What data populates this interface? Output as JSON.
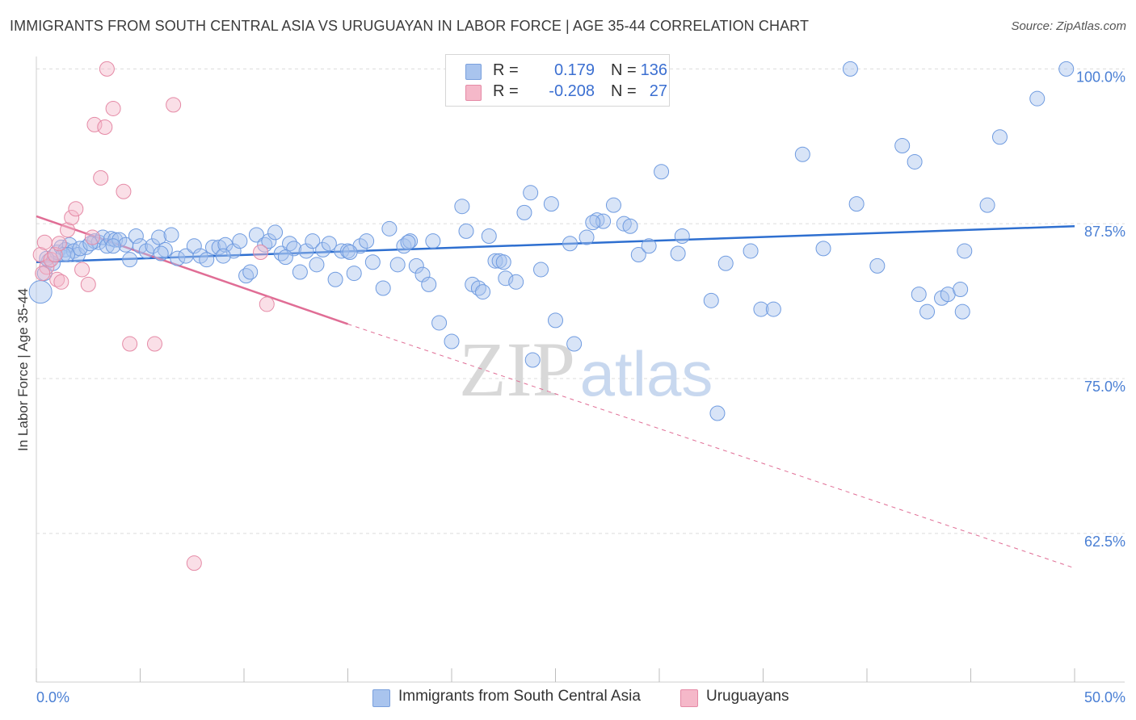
{
  "title": "IMMIGRANTS FROM SOUTH CENTRAL ASIA VS URUGUAYAN IN LABOR FORCE | AGE 35-44 CORRELATION CHART",
  "source": "Source: ZipAtlas.com",
  "watermark": {
    "zip": "ZIP",
    "atlas": "atlas"
  },
  "colors": {
    "blue": "#4a7fd4",
    "blue_fill": "#a9c4ee",
    "blue_line": "#2e6fd0",
    "pink_fill": "#f5b8c9",
    "pink_line": "#e06d95",
    "grid": "#dcdcdc",
    "tick_text": "#4a7fd4"
  },
  "legend": {
    "rows": [
      {
        "r_label": "R =",
        "r_value": "0.179",
        "n_label": "N =",
        "n_value": "136",
        "color": "#a9c4ee"
      },
      {
        "r_label": "R =",
        "r_value": "-0.208",
        "n_label": "N =",
        "n_value": "27",
        "color": "#f5b8c9"
      }
    ]
  },
  "bottom_legend": [
    {
      "label": "Immigrants from South Central Asia",
      "color": "#a9c4ee"
    },
    {
      "label": "Uruguayans",
      "color": "#f5b8c9"
    }
  ],
  "chart_data": {
    "type": "scatter",
    "title": "IMMIGRANTS FROM SOUTH CENTRAL ASIA VS URUGUAYAN IN LABOR FORCE | AGE 35-44 CORRELATION CHART",
    "xlabel": "",
    "ylabel": "In Labor Force | Age 35-44",
    "xlim": [
      0,
      50
    ],
    "ylim": [
      50.5,
      101
    ],
    "x_tick_labels": [
      "0.0%",
      "50.0%"
    ],
    "y_ticks": [
      62.5,
      75.0,
      87.5,
      100.0
    ],
    "y_tick_labels": [
      "62.5%",
      "75.0%",
      "87.5%",
      "100.0%"
    ],
    "grid": true,
    "legend_position": "top-center",
    "series": [
      {
        "name": "Immigrants from South Central Asia",
        "color": "#a9c4ee",
        "trend": {
          "x": [
            0,
            50
          ],
          "y": [
            84.4,
            87.3
          ],
          "style": "solid"
        },
        "points": [
          [
            0.2,
            82.0
          ],
          [
            0.4,
            83.5
          ],
          [
            0.6,
            84.5
          ],
          [
            0.8,
            84.3
          ],
          [
            1.0,
            85.2
          ],
          [
            1.2,
            85.6
          ],
          [
            1.4,
            85.4
          ],
          [
            1.6,
            85.8
          ],
          [
            1.8,
            85.3
          ],
          [
            2.0,
            85.0
          ],
          [
            2.4,
            85.6
          ],
          [
            2.8,
            86.1
          ],
          [
            3.0,
            86.0
          ],
          [
            3.2,
            86.4
          ],
          [
            3.4,
            85.7
          ],
          [
            3.6,
            86.3
          ],
          [
            3.8,
            86.2
          ],
          [
            4.0,
            86.2
          ],
          [
            4.3,
            85.8
          ],
          [
            4.5,
            84.6
          ],
          [
            4.8,
            86.5
          ],
          [
            5.0,
            85.7
          ],
          [
            5.3,
            85.3
          ],
          [
            5.6,
            85.7
          ],
          [
            5.9,
            86.4
          ],
          [
            6.2,
            85.4
          ],
          [
            6.5,
            86.6
          ],
          [
            6.8,
            84.7
          ],
          [
            7.2,
            84.9
          ],
          [
            7.6,
            85.7
          ],
          [
            7.9,
            84.9
          ],
          [
            8.2,
            84.6
          ],
          [
            8.5,
            85.6
          ],
          [
            8.8,
            85.6
          ],
          [
            9.1,
            85.8
          ],
          [
            9.5,
            85.3
          ],
          [
            9.8,
            86.1
          ],
          [
            10.1,
            83.3
          ],
          [
            10.3,
            83.6
          ],
          [
            10.6,
            86.6
          ],
          [
            11.0,
            85.8
          ],
          [
            11.2,
            86.1
          ],
          [
            11.5,
            86.8
          ],
          [
            11.8,
            85.1
          ],
          [
            12.2,
            85.9
          ],
          [
            12.4,
            85.5
          ],
          [
            12.7,
            83.6
          ],
          [
            13.0,
            85.3
          ],
          [
            13.3,
            86.1
          ],
          [
            13.5,
            84.2
          ],
          [
            13.8,
            85.4
          ],
          [
            14.1,
            85.9
          ],
          [
            14.4,
            83.0
          ],
          [
            14.7,
            85.3
          ],
          [
            15.0,
            85.3
          ],
          [
            15.3,
            83.5
          ],
          [
            15.6,
            85.7
          ],
          [
            15.9,
            86.1
          ],
          [
            16.2,
            84.4
          ],
          [
            16.7,
            82.3
          ],
          [
            17.0,
            87.1
          ],
          [
            17.4,
            84.2
          ],
          [
            17.7,
            85.7
          ],
          [
            18.0,
            86.1
          ],
          [
            18.3,
            84.1
          ],
          [
            18.6,
            83.4
          ],
          [
            18.9,
            82.6
          ],
          [
            19.1,
            86.1
          ],
          [
            19.4,
            79.5
          ],
          [
            20.0,
            78.0
          ],
          [
            20.5,
            88.9
          ],
          [
            20.7,
            86.9
          ],
          [
            21.0,
            82.6
          ],
          [
            21.3,
            82.3
          ],
          [
            21.5,
            82.0
          ],
          [
            21.8,
            86.5
          ],
          [
            22.1,
            84.5
          ],
          [
            22.3,
            84.5
          ],
          [
            22.6,
            83.1
          ],
          [
            23.1,
            82.8
          ],
          [
            23.5,
            88.4
          ],
          [
            23.8,
            90.0
          ],
          [
            23.9,
            76.5
          ],
          [
            24.3,
            83.8
          ],
          [
            24.8,
            89.1
          ],
          [
            25.0,
            79.7
          ],
          [
            25.7,
            85.9
          ],
          [
            25.9,
            77.8
          ],
          [
            26.5,
            86.4
          ],
          [
            27.0,
            87.8
          ],
          [
            27.3,
            87.7
          ],
          [
            27.8,
            89.0
          ],
          [
            28.3,
            87.5
          ],
          [
            28.6,
            87.3
          ],
          [
            29.0,
            85.0
          ],
          [
            29.5,
            85.7
          ],
          [
            30.1,
            91.7
          ],
          [
            30.9,
            85.1
          ],
          [
            31.1,
            86.5
          ],
          [
            32.5,
            81.3
          ],
          [
            32.8,
            72.2
          ],
          [
            33.2,
            84.3
          ],
          [
            34.4,
            85.3
          ],
          [
            34.9,
            80.6
          ],
          [
            35.5,
            80.6
          ],
          [
            36.9,
            93.1
          ],
          [
            37.9,
            85.5
          ],
          [
            39.2,
            100.0
          ],
          [
            39.5,
            89.1
          ],
          [
            40.5,
            84.1
          ],
          [
            41.7,
            93.8
          ],
          [
            42.3,
            92.5
          ],
          [
            42.5,
            81.8
          ],
          [
            42.9,
            80.4
          ],
          [
            43.6,
            81.5
          ],
          [
            43.9,
            81.8
          ],
          [
            44.5,
            82.2
          ],
          [
            44.6,
            80.4
          ],
          [
            44.7,
            85.3
          ],
          [
            45.8,
            89.0
          ],
          [
            46.4,
            94.5
          ],
          [
            48.2,
            97.6
          ],
          [
            49.6,
            100.0
          ],
          [
            0.5,
            84.7
          ],
          [
            1.3,
            85.0
          ],
          [
            2.1,
            85.5
          ],
          [
            3.7,
            85.7
          ],
          [
            6.0,
            85.1
          ],
          [
            9.0,
            84.9
          ],
          [
            12.0,
            84.8
          ],
          [
            15.1,
            85.2
          ],
          [
            17.9,
            86.0
          ],
          [
            22.5,
            84.4
          ],
          [
            26.8,
            87.6
          ],
          [
            1.5,
            85.0
          ],
          [
            2.6,
            85.9
          ]
        ]
      },
      {
        "name": "Uruguayans",
        "color": "#f5b8c9",
        "trend": {
          "x": [
            0,
            15
          ],
          "y": [
            88.1,
            79.4
          ],
          "extended_to": [
            50,
            59.7
          ],
          "style": "solid then dashed"
        },
        "points": [
          [
            0.2,
            85.0
          ],
          [
            0.4,
            86.0
          ],
          [
            0.5,
            84.0
          ],
          [
            0.7,
            84.6
          ],
          [
            0.9,
            85.0
          ],
          [
            1.0,
            83.0
          ],
          [
            1.2,
            82.8
          ],
          [
            1.5,
            87.0
          ],
          [
            1.7,
            88.0
          ],
          [
            1.9,
            88.7
          ],
          [
            2.2,
            83.8
          ],
          [
            2.5,
            82.6
          ],
          [
            2.7,
            86.4
          ],
          [
            2.8,
            95.5
          ],
          [
            3.1,
            91.2
          ],
          [
            3.3,
            95.3
          ],
          [
            3.4,
            100.0
          ],
          [
            3.7,
            96.8
          ],
          [
            4.2,
            90.1
          ],
          [
            4.5,
            77.8
          ],
          [
            5.7,
            77.8
          ],
          [
            6.6,
            97.1
          ],
          [
            7.6,
            60.1
          ],
          [
            10.8,
            85.2
          ],
          [
            11.1,
            81.0
          ],
          [
            0.3,
            83.5
          ],
          [
            1.1,
            85.9
          ]
        ]
      }
    ]
  }
}
